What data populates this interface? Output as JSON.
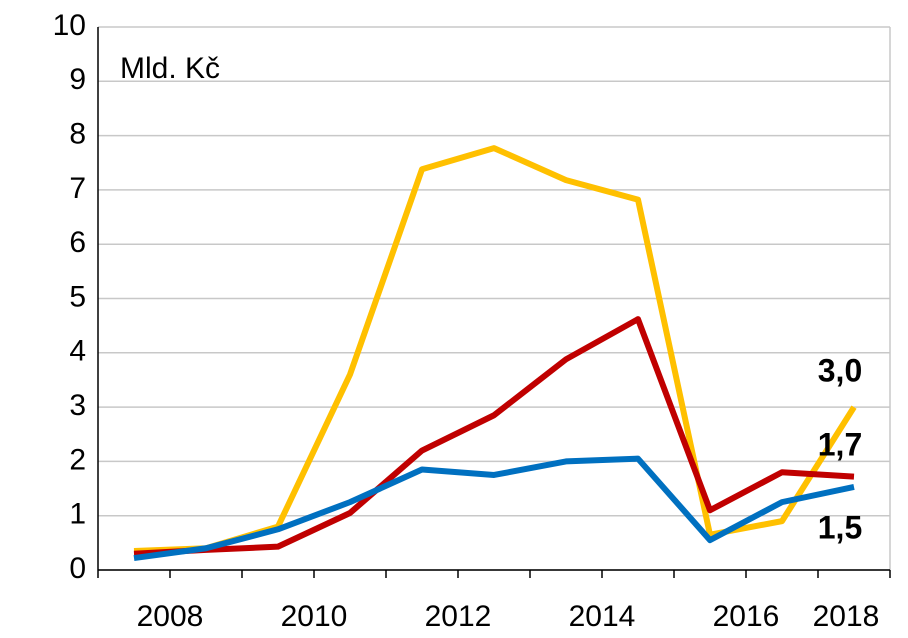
{
  "chart_data": {
    "type": "line",
    "annotation": "Mld. Kč",
    "categories": [
      "2008",
      null,
      "2010",
      null,
      "2012",
      null,
      "2014",
      null,
      "2016",
      null,
      "2018"
    ],
    "series": [
      {
        "color": "#FFC000",
        "values": [
          0.35,
          0.4,
          0.8,
          3.6,
          7.38,
          7.77,
          7.18,
          6.82,
          0.65,
          0.9,
          3.0
        ],
        "value_labels": [
          null,
          null,
          null,
          null,
          null,
          null,
          null,
          null,
          null,
          null,
          "3,0"
        ]
      },
      {
        "color": "#C00000",
        "values": [
          0.3,
          0.37,
          0.43,
          1.05,
          2.2,
          2.85,
          3.88,
          4.62,
          1.1,
          1.8,
          1.72
        ],
        "value_labels": [
          null,
          null,
          null,
          null,
          null,
          null,
          null,
          null,
          null,
          null,
          "1,7"
        ]
      },
      {
        "color": "#0070C0",
        "values": [
          0.22,
          0.4,
          0.75,
          1.25,
          1.85,
          1.75,
          2.0,
          2.05,
          0.55,
          1.25,
          1.53
        ],
        "value_labels": [
          null,
          null,
          null,
          null,
          null,
          null,
          null,
          null,
          null,
          null,
          "1,5"
        ]
      }
    ],
    "ylim": [
      0,
      10
    ],
    "yticks": [
      0,
      1,
      2,
      3,
      4,
      5,
      6,
      7,
      8,
      9,
      10
    ],
    "grid": true
  }
}
